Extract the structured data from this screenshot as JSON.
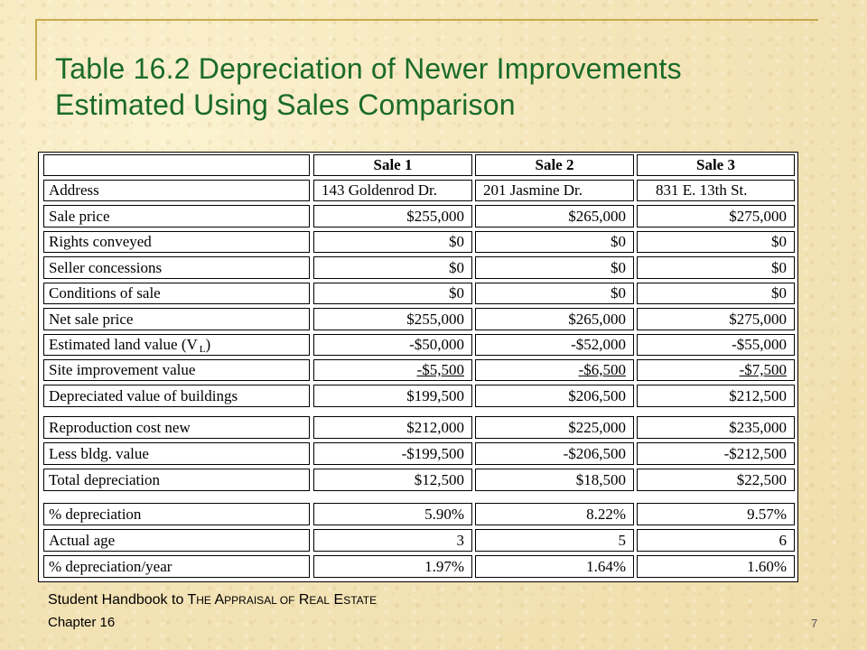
{
  "slide": {
    "title_line1": "Table 16.2 Depreciation of Newer Improvements",
    "title_line2": "Estimated Using Sales Comparison",
    "page_number": "7",
    "accent_color": "#1a6b2a",
    "frame_color": "#c7ab4d"
  },
  "table": {
    "headers": [
      "",
      "Sale 1",
      "Sale 2",
      "Sale 3"
    ],
    "rows": [
      {
        "label": "Address",
        "values": [
          "143 Goldenrod Dr.",
          "201 Jasmine Dr.",
          "831 E. 13th St."
        ]
      },
      {
        "label": "Sale price",
        "values": [
          "$255,000",
          "$265,000",
          "$275,000"
        ]
      },
      {
        "label": "Rights conveyed",
        "values": [
          "$0",
          "$0",
          "$0"
        ]
      },
      {
        "label": "Seller concessions",
        "values": [
          "$0",
          "$0",
          "$0"
        ]
      },
      {
        "label": "Conditions of sale",
        "values": [
          "$0",
          "$0",
          "$0"
        ]
      },
      {
        "label": "Net sale price",
        "values": [
          "$255,000",
          "$265,000",
          "$275,000"
        ]
      },
      {
        "label": "Estimated land value (V",
        "label_sub": "L",
        "label_end": ")",
        "values": [
          "-$50,000",
          "-$52,000",
          "-$55,000"
        ]
      },
      {
        "label": "Site improvement value",
        "values": [
          "-$5,500",
          "-$6,500",
          "-$7,500"
        ]
      },
      {
        "label": "Depreciated value of buildings",
        "values": [
          "$199,500",
          "$206,500",
          "$212,500"
        ]
      },
      {
        "label": "Reproduction cost new",
        "values": [
          "$212,000",
          "$225,000",
          "$235,000"
        ]
      },
      {
        "label": "Less bldg. value",
        "values": [
          "-$199,500",
          "-$206,500",
          "-$212,500"
        ]
      },
      {
        "label": "Total depreciation",
        "values": [
          "$12,500",
          "$18,500",
          "$22,500"
        ]
      },
      {
        "label": "% depreciation",
        "values": [
          "5.90%",
          "8.22%",
          "9.57%"
        ]
      },
      {
        "label": "Actual age",
        "values": [
          "3",
          "5",
          "6"
        ]
      },
      {
        "label": "% depreciation/year",
        "values": [
          "1.97%",
          "1.64%",
          "1.60%"
        ]
      }
    ]
  },
  "footer": {
    "book_prefix": "Student Handbook to T",
    "book_he": "HE",
    "book_a": " A",
    "book_ppraisal": "PPRAISAL",
    "book_of": " OF",
    "book_r": " R",
    "book_eal": "EAL",
    "book_e": " E",
    "book_state": "STATE",
    "chapter": "Chapter 16"
  }
}
